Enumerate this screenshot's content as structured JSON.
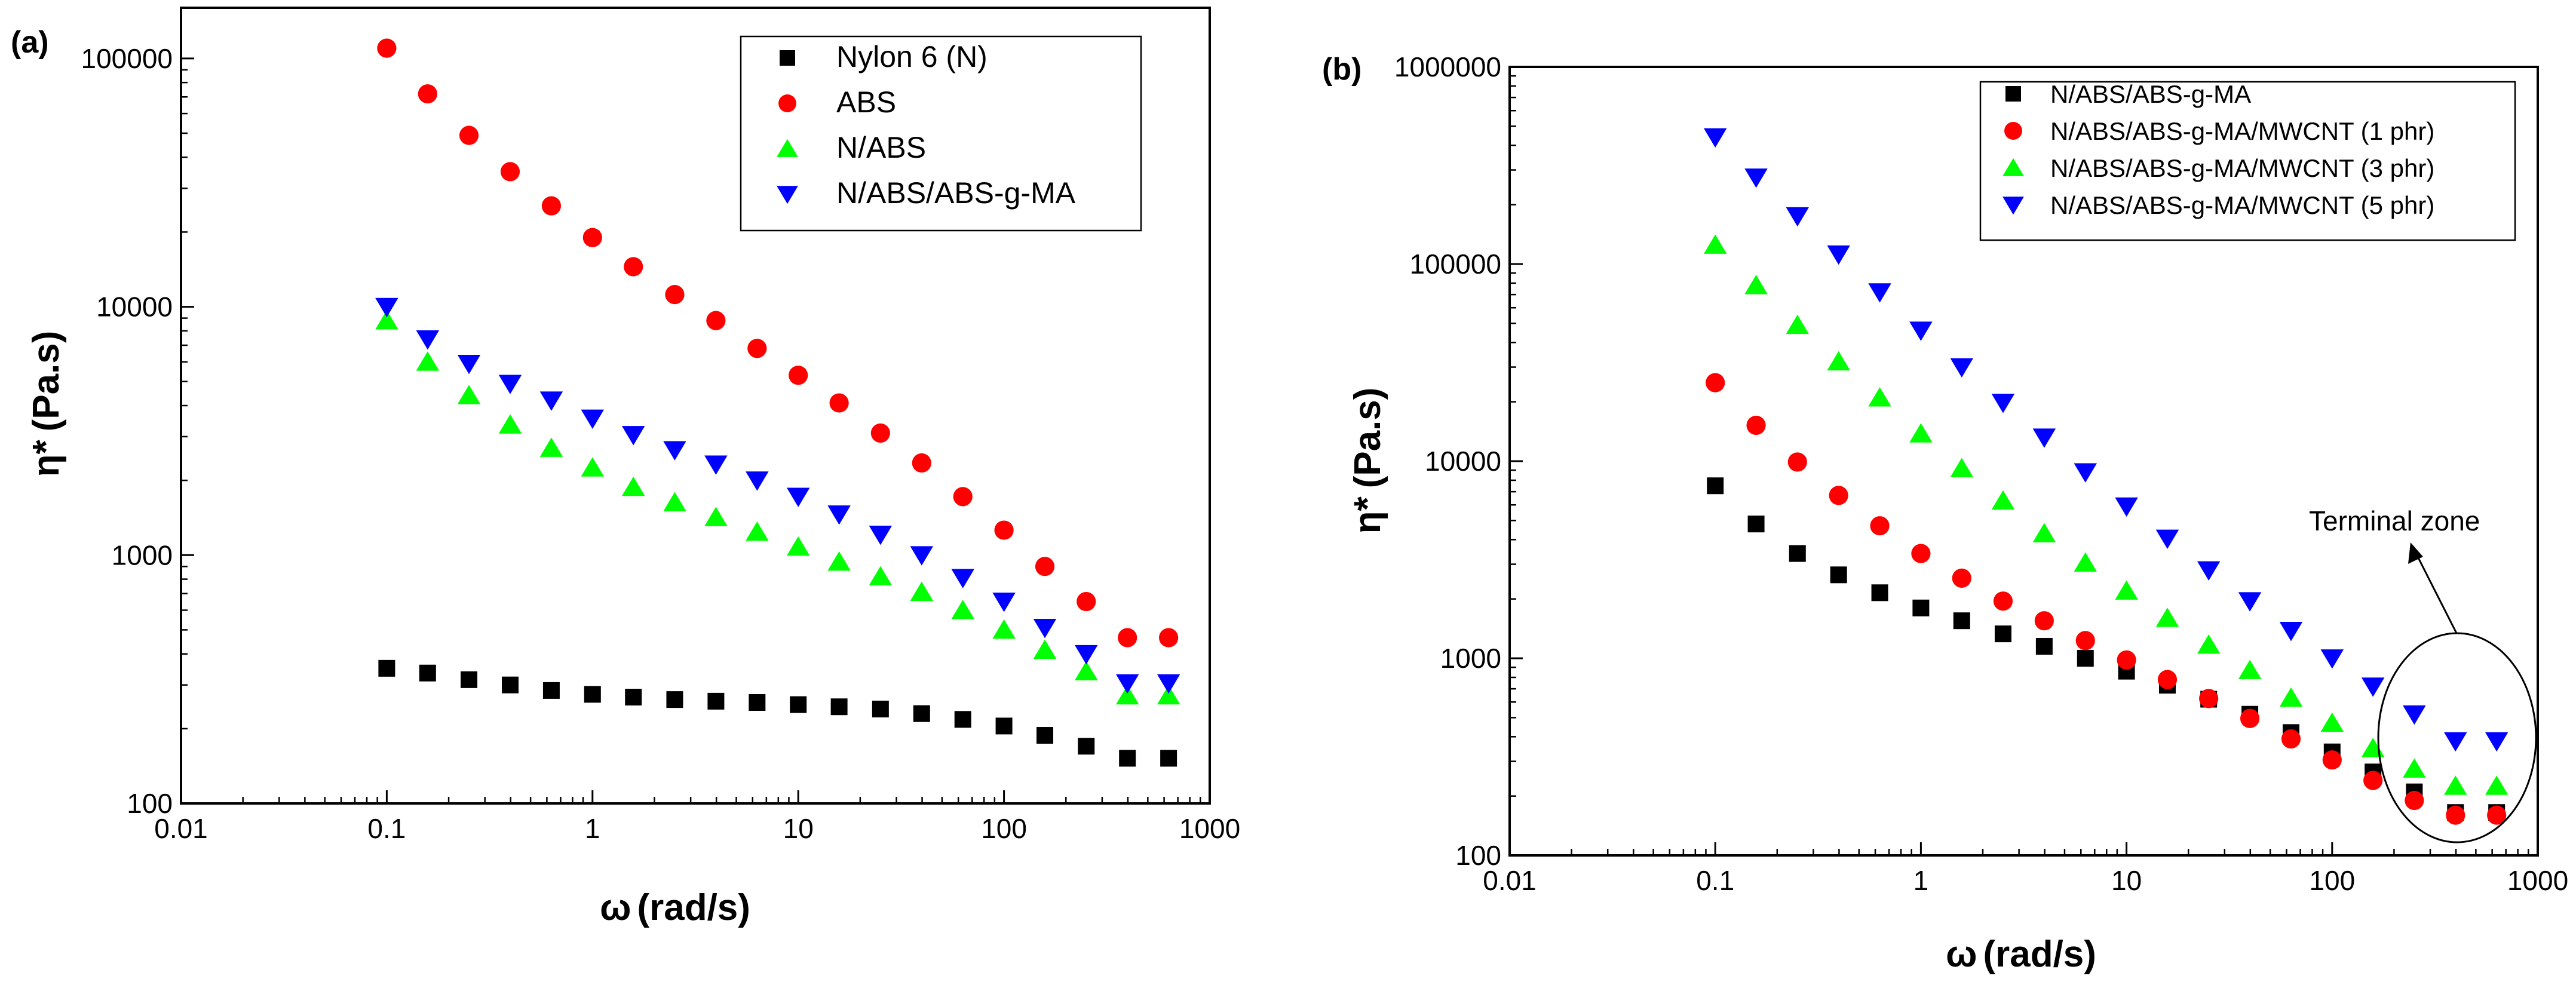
{
  "chart_data": [
    {
      "panel": "(a)",
      "type": "scatter",
      "xscale": "log",
      "yscale": "log",
      "xlabel_symbol": "ω",
      "xlabel_units": "(rad/s)",
      "ylabel_symbol": "η*",
      "ylabel_units": "(Pa.s)",
      "xlim": [
        0.01,
        1000
      ],
      "ylim": [
        100,
        160000
      ],
      "xticks": [
        0.01,
        0.1,
        1,
        10,
        100,
        1000
      ],
      "xtick_labels": [
        "0.01",
        "0.1",
        "1",
        "10",
        "100",
        "1000"
      ],
      "yticks": [
        100,
        1000,
        10000,
        100000
      ],
      "ytick_labels": [
        "100",
        "1000",
        "10000",
        "100000"
      ],
      "legend_position": "top-right",
      "x": [
        0.1,
        0.158,
        0.251,
        0.398,
        0.631,
        1.0,
        1.58,
        2.51,
        3.98,
        6.31,
        10,
        15.8,
        25.1,
        39.8,
        63.1,
        100,
        158,
        251,
        398,
        631
      ],
      "series": [
        {
          "name": "Nylon 6 (N)",
          "marker": "square",
          "color": "#000000",
          "values": [
            350,
            335,
            315,
            300,
            285,
            275,
            268,
            262,
            258,
            255,
            250,
            245,
            240,
            230,
            218,
            205,
            188,
            170,
            152,
            152
          ]
        },
        {
          "name": "ABS",
          "marker": "circle",
          "color": "#ff0000",
          "values": [
            110000,
            72000,
            49000,
            35000,
            25500,
            19000,
            14500,
            11200,
            8800,
            6800,
            5300,
            4100,
            3100,
            2350,
            1720,
            1260,
            900,
            650,
            465,
            465
          ]
        },
        {
          "name": "N/ABS",
          "marker": "triangle-up",
          "color": "#00ff00",
          "values": [
            8800,
            6000,
            4400,
            3350,
            2700,
            2250,
            1880,
            1630,
            1420,
            1240,
            1080,
            940,
            820,
            710,
            600,
            500,
            415,
            340,
            272,
            272
          ]
        },
        {
          "name": "N/ABS/ABS-g-MA",
          "marker": "triangle-down",
          "color": "#0000ff",
          "values": [
            10000,
            7400,
            5900,
            4900,
            4200,
            3550,
            3050,
            2650,
            2320,
            2000,
            1720,
            1460,
            1210,
            1000,
            810,
            650,
            510,
            400,
            305,
            305
          ]
        }
      ]
    },
    {
      "panel": "(b)",
      "type": "scatter",
      "xscale": "log",
      "yscale": "log",
      "xlabel_symbol": "ω",
      "xlabel_units": "(rad/s)",
      "ylabel_symbol": "η*",
      "ylabel_units": "(Pa.s)",
      "xlim": [
        0.01,
        1000
      ],
      "ylim": [
        100,
        1000000
      ],
      "xticks": [
        0.01,
        0.1,
        1,
        10,
        100,
        1000
      ],
      "xtick_labels": [
        "0.01",
        "0.1",
        "1",
        "10",
        "100",
        "1000"
      ],
      "yticks": [
        100,
        1000,
        10000,
        100000,
        1000000
      ],
      "ytick_labels": [
        "100",
        "1000",
        "10000",
        "100000",
        "1000000"
      ],
      "legend_position": "top-right",
      "annotation": "Terminal zone",
      "x": [
        0.1,
        0.158,
        0.251,
        0.398,
        0.631,
        1.0,
        1.58,
        2.51,
        3.98,
        6.31,
        10,
        15.8,
        25.1,
        39.8,
        63.1,
        100,
        158,
        251,
        398,
        631
      ],
      "series": [
        {
          "name": "N/ABS/ABS-g-MA",
          "marker": "square",
          "color": "#000000",
          "values": [
            7500,
            4800,
            3400,
            2650,
            2150,
            1800,
            1550,
            1330,
            1150,
            1000,
            860,
            730,
            620,
            520,
            420,
            335,
            265,
            210,
            165,
            165
          ]
        },
        {
          "name": "N/ABS/ABS-g-MA/MWCNT (1 phr)",
          "marker": "circle",
          "color": "#ff0000",
          "values": [
            25000,
            15200,
            9900,
            6700,
            4700,
            3400,
            2550,
            1950,
            1550,
            1230,
            980,
            780,
            625,
            495,
            390,
            305,
            240,
            190,
            160,
            160
          ]
        },
        {
          "name": "N/ABS/ABS-g-MA/MWCNT (3 phr)",
          "marker": "triangle-up",
          "color": "#00ff00",
          "values": [
            125000,
            78000,
            49000,
            32000,
            21000,
            13800,
            9200,
            6300,
            4300,
            3050,
            2200,
            1600,
            1170,
            870,
            630,
            470,
            350,
            275,
            225,
            225
          ]
        },
        {
          "name": "N/ABS/ABS-g-MA/MWCNT (5 phr)",
          "marker": "triangle-down",
          "color": "#0000ff",
          "values": [
            440000,
            275000,
            175000,
            112000,
            72000,
            46000,
            30000,
            19800,
            13200,
            8800,
            5900,
            4050,
            2800,
            1950,
            1380,
            1000,
            720,
            520,
            380,
            380
          ]
        }
      ]
    }
  ]
}
